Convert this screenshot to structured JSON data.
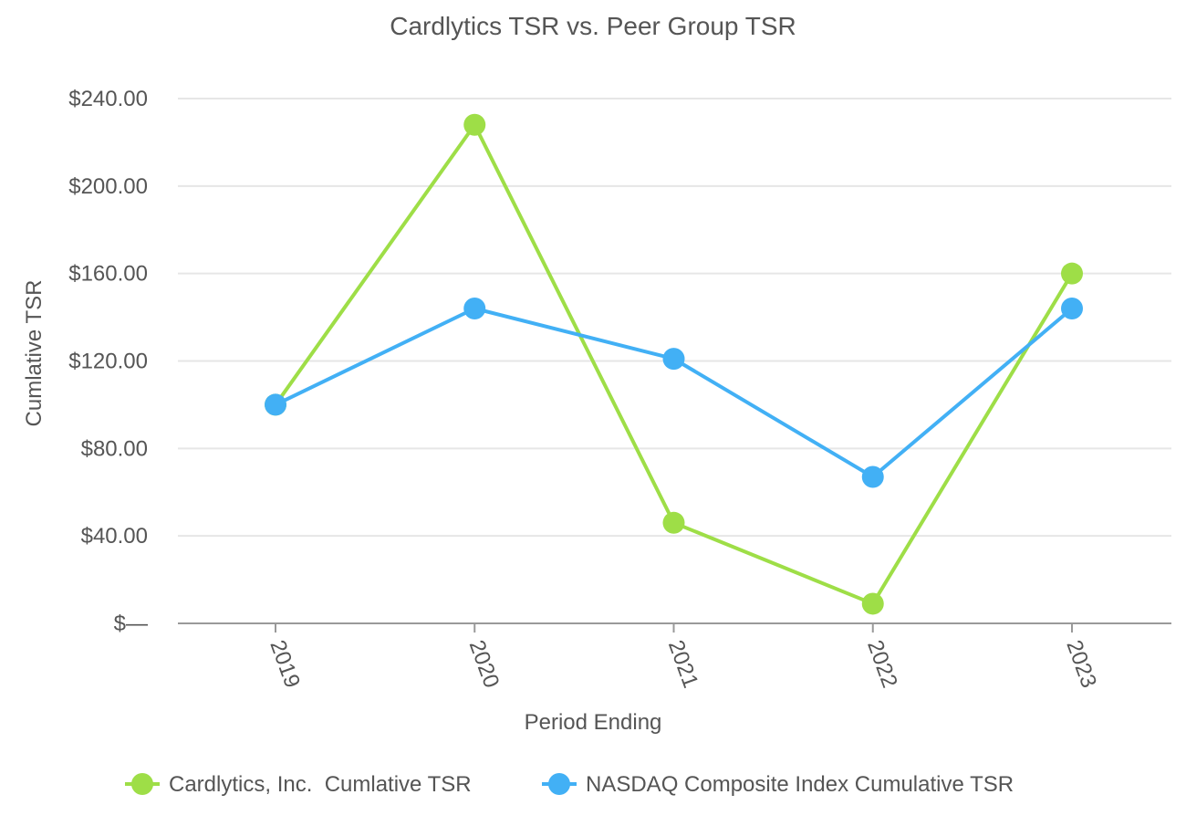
{
  "chart_data": {
    "type": "line",
    "title": "Cardlytics TSR vs. Peer Group TSR",
    "xlabel": "Period Ending",
    "ylabel": "Cumlative TSR",
    "categories": [
      "2019",
      "2020",
      "2021",
      "2022",
      "2023"
    ],
    "ylim": [
      0,
      240
    ],
    "yticks": [
      0,
      40,
      80,
      120,
      160,
      200,
      240
    ],
    "ytick_labels": [
      "$—",
      "$40.00",
      "$80.00",
      "$120.00",
      "$160.00",
      "$200.00",
      "$240.00"
    ],
    "grid": true,
    "legend_position": "bottom",
    "series": [
      {
        "name": "Cardlytics, Inc.  Cumlative TSR",
        "color": "#9ede47",
        "values": [
          100,
          228,
          46,
          9,
          160
        ]
      },
      {
        "name": "NASDAQ Composite Index Cumulative TSR",
        "color": "#42b0f5",
        "values": [
          100,
          144,
          121,
          67,
          144
        ]
      }
    ]
  }
}
